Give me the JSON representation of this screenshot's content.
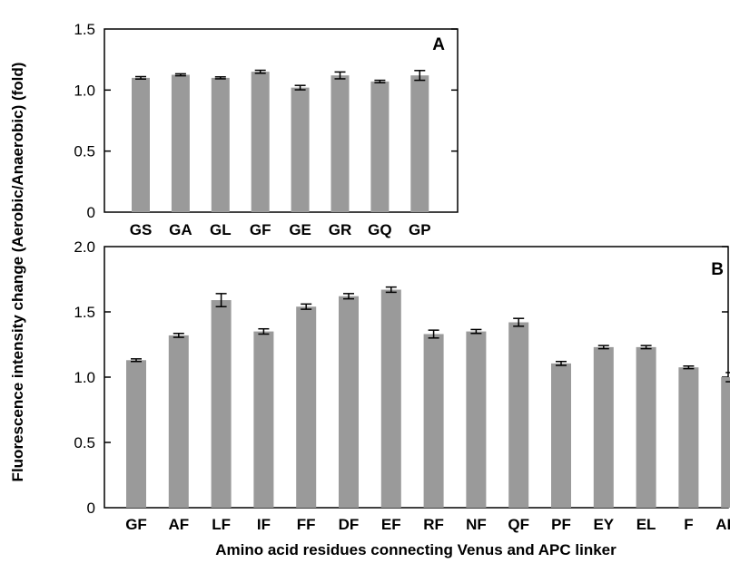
{
  "figure": {
    "ylabel": "Fluorescence intensity change (Aerobic/Anaerobic) (fold)",
    "xlabel": "Amino acid residues connecting Venus and APC linker"
  },
  "colors": {
    "bar": "#9a9a9a",
    "axis": "#000000"
  },
  "chart_data": [
    {
      "type": "bar",
      "panel": "A",
      "categories": [
        "GS",
        "GA",
        "GL",
        "GF",
        "GE",
        "GR",
        "GQ",
        "GP"
      ],
      "values": [
        1.1,
        1.125,
        1.1,
        1.15,
        1.02,
        1.12,
        1.07,
        1.12
      ],
      "errors": [
        0.01,
        0.008,
        0.008,
        0.012,
        0.018,
        0.028,
        0.01,
        0.04
      ],
      "ylim": [
        0,
        1.5
      ],
      "yticks": [
        "0",
        "0.5",
        "1.0",
        "1.5"
      ],
      "ytick_values": [
        0,
        0.5,
        1.0,
        1.5
      ],
      "grid": false
    },
    {
      "type": "bar",
      "panel": "B",
      "categories": [
        "GF",
        "AF",
        "LF",
        "IF",
        "FF",
        "DF",
        "EF",
        "RF",
        "NF",
        "QF",
        "PF",
        "EY",
        "EL",
        "F",
        "AEF"
      ],
      "values": [
        1.13,
        1.32,
        1.59,
        1.35,
        1.54,
        1.62,
        1.67,
        1.33,
        1.35,
        1.42,
        1.105,
        1.23,
        1.23,
        1.075,
        1.0
      ],
      "errors": [
        0.01,
        0.015,
        0.05,
        0.02,
        0.02,
        0.02,
        0.02,
        0.03,
        0.015,
        0.03,
        0.015,
        0.012,
        0.012,
        0.01,
        0.035
      ],
      "ylim": [
        0,
        2.0
      ],
      "yticks": [
        "0",
        "0.5",
        "1.0",
        "1.5",
        "2.0"
      ],
      "ytick_values": [
        0,
        0.5,
        1.0,
        1.5,
        2.0
      ],
      "grid": false
    }
  ]
}
